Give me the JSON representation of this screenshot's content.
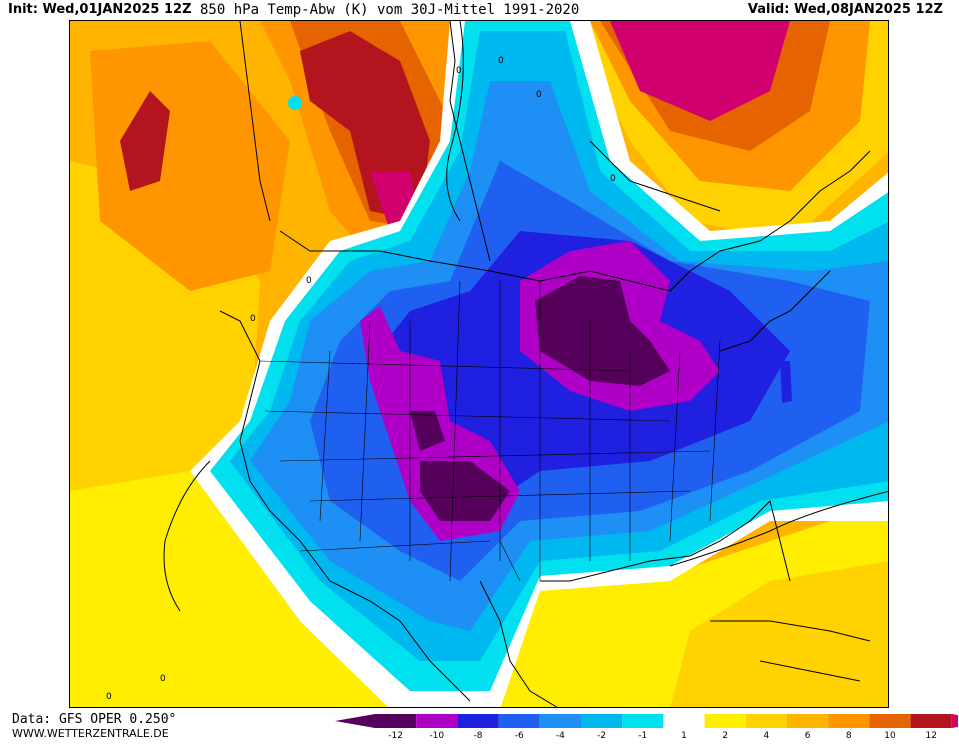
{
  "header": {
    "init": "Init: Wed,01JAN2025 12Z",
    "title": "850 hPa Temp-Abw (K) vom 30J-Mittel 1991-2020",
    "valid": "Valid: Wed,08JAN2025 12Z"
  },
  "footer": {
    "data_source": "Data: GFS OPER 0.250°",
    "website": "WWW.WETTERZENTRALE.DE"
  },
  "colors": {
    "c_m12": "#55005a",
    "c_m10": "#b000c8",
    "c_m8": "#2020e0",
    "c_m6": "#2060f0",
    "c_m4": "#1e90f5",
    "c_m2": "#00b8f0",
    "c_m1": "#00e0ee",
    "c_0": "#ffffff",
    "c_1": "#ffee00",
    "c_2": "#ffd200",
    "c_4": "#ffb400",
    "c_6": "#ff9600",
    "c_8": "#e66400",
    "c_10": "#b4141e",
    "c_12": "#d2006e"
  },
  "legend": {
    "bins": [
      {
        "color": "#55005a",
        "label": "-12"
      },
      {
        "color": "#b000c8",
        "label": "-10"
      },
      {
        "color": "#2020e0",
        "label": "-8"
      },
      {
        "color": "#2060f0",
        "label": "-6"
      },
      {
        "color": "#1e90f5",
        "label": "-4"
      },
      {
        "color": "#00b8f0",
        "label": "-2"
      },
      {
        "color": "#00e0ee",
        "label": "-1"
      },
      {
        "color": "#ffffff",
        "label": "1"
      },
      {
        "color": "#ffee00",
        "label": "2"
      },
      {
        "color": "#ffd200",
        "label": "4"
      },
      {
        "color": "#ffb400",
        "label": "6"
      },
      {
        "color": "#ff9600",
        "label": "8"
      },
      {
        "color": "#e66400",
        "label": "10"
      },
      {
        "color": "#b4141e",
        "label": "12"
      }
    ],
    "end_low_color": "#55005a",
    "end_high_color": "#d2006e"
  },
  "contour_labels": [
    "0",
    "0",
    "0",
    "0",
    "0",
    "0",
    "0",
    "0"
  ]
}
